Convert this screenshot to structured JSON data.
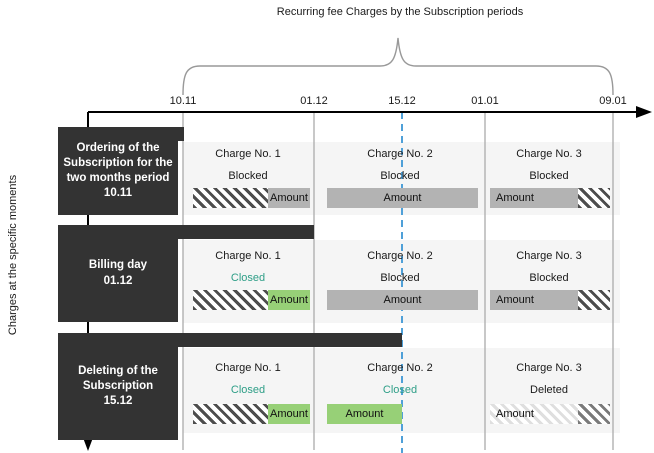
{
  "title": "Recurring fee Charges by the Subscription periods",
  "y_axis_label": "Charges at the specific moments",
  "timeline": {
    "ticks": [
      "10.11",
      "01.12",
      "15.12",
      "01.01",
      "09.01"
    ],
    "highlight_tick": "15.12"
  },
  "colors": {
    "panel_dark": "#333333",
    "band_gray": "#f5f5f5",
    "bar_gray": "#b3b3b3",
    "bar_green": "#97d077",
    "closed_teal": "#2e9e87",
    "dashed_blue": "#4fa0d8"
  },
  "rows": [
    {
      "moment_label": "Ordering of the\nSubscription for the\ntwo months period\n10.11",
      "charges": [
        {
          "title": "Charge No. 1",
          "status": "Blocked",
          "status_color": "#1a1a1a",
          "bar": {
            "segments": [
              {
                "style": "hatch",
                "flex": 75
              },
              {
                "style": "gray",
                "flex": 42,
                "label": "Amount"
              }
            ]
          }
        },
        {
          "title": "Charge No. 2",
          "status": "Blocked",
          "status_color": "#1a1a1a",
          "bar": {
            "segments": [
              {
                "style": "gray",
                "flex": 151,
                "label": "Amount"
              }
            ]
          }
        },
        {
          "title": "Charge No. 3",
          "status": "Blocked",
          "status_color": "#1a1a1a",
          "bar": {
            "segments": [
              {
                "style": "gray",
                "flex": 86,
                "label": "Amount",
                "align": "left"
              },
              {
                "style": "hatch",
                "flex": 34
              }
            ]
          }
        }
      ]
    },
    {
      "moment_label": "Billing day\n01.12",
      "charges": [
        {
          "title": "Charge No. 1",
          "status": "Closed",
          "status_color": "#2e9e87",
          "bar": {
            "segments": [
              {
                "style": "hatch",
                "flex": 75
              },
              {
                "style": "green",
                "flex": 42,
                "label": "Amount"
              }
            ]
          }
        },
        {
          "title": "Charge No. 2",
          "status": "Blocked",
          "status_color": "#1a1a1a",
          "bar": {
            "segments": [
              {
                "style": "gray",
                "flex": 151,
                "label": "Amount"
              }
            ]
          }
        },
        {
          "title": "Charge No. 3",
          "status": "Blocked",
          "status_color": "#1a1a1a",
          "bar": {
            "segments": [
              {
                "style": "gray",
                "flex": 86,
                "label": "Amount",
                "align": "left"
              },
              {
                "style": "hatch",
                "flex": 34
              }
            ]
          }
        }
      ]
    },
    {
      "moment_label": "Deleting of the\nSubscription\n15.12",
      "charges": [
        {
          "title": "Charge No. 1",
          "status": "Closed",
          "status_color": "#2e9e87",
          "bar": {
            "segments": [
              {
                "style": "hatch",
                "flex": 75
              },
              {
                "style": "green",
                "flex": 42,
                "label": "Amount"
              }
            ]
          }
        },
        {
          "title": "Charge No. 2",
          "status": "Closed",
          "status_color": "#2e9e87",
          "bar": {
            "segments": [
              {
                "style": "green",
                "flex": 75,
                "label": "Amount"
              }
            ]
          }
        },
        {
          "title": "Charge No. 3",
          "status": "Deleted",
          "status_color": "#1a1a1a",
          "bar": {
            "segments": [
              {
                "style": "faint-hatch",
                "flex": 86,
                "label": "Amount",
                "align": "left"
              },
              {
                "style": "dark-hatch",
                "flex": 34
              }
            ]
          }
        }
      ]
    }
  ]
}
